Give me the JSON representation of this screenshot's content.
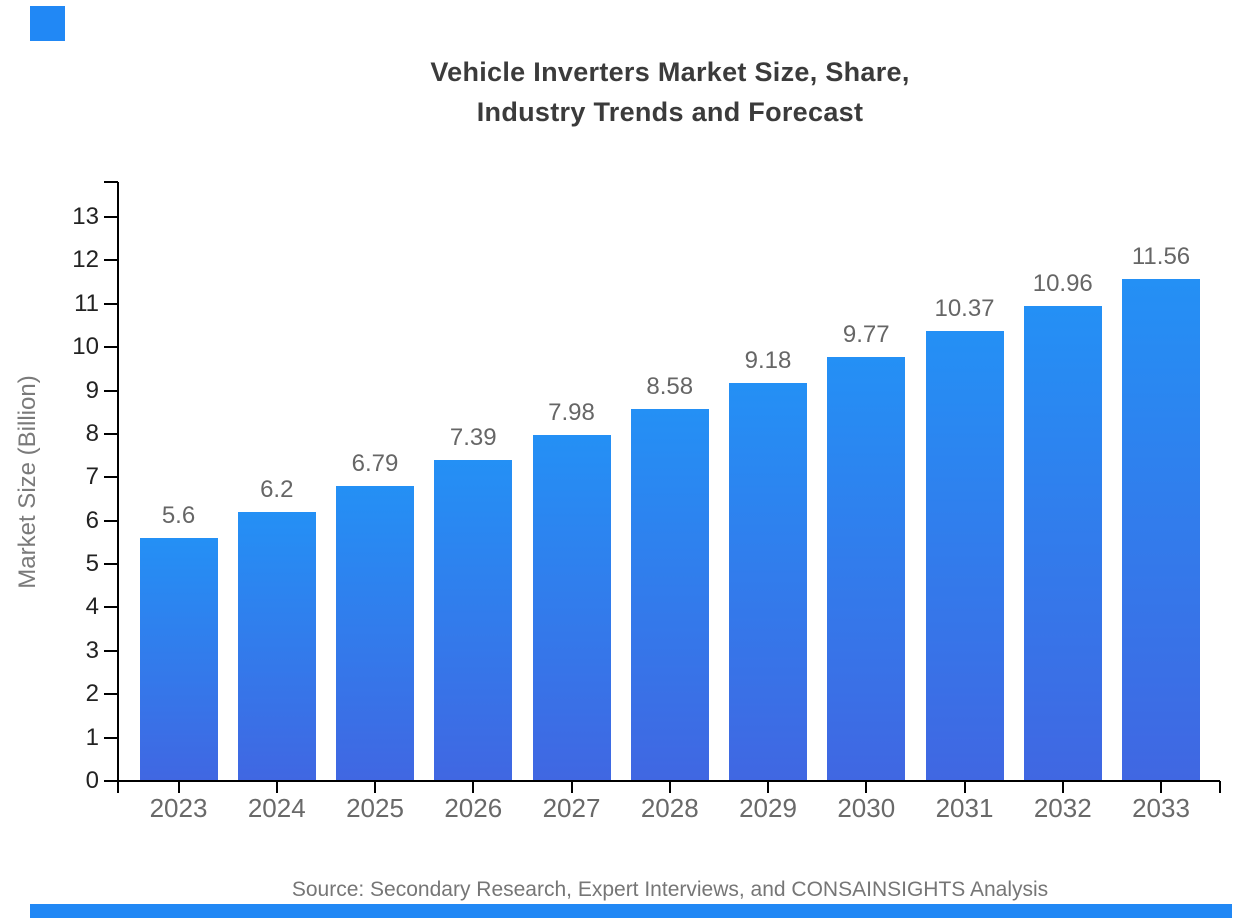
{
  "title": {
    "line1": "Vehicle Inverters Market Size, Share,",
    "line2": "Industry Trends and Forecast"
  },
  "source": "Source: Secondary Research, Expert Interviews, and CONSAINSIGHTS Analysis",
  "chart_data": {
    "type": "bar",
    "title": "Vehicle Inverters Market Size, Share, Industry Trends and Forecast",
    "categories": [
      "2023",
      "2024",
      "2025",
      "2026",
      "2027",
      "2028",
      "2029",
      "2030",
      "2031",
      "2032",
      "2033"
    ],
    "values": [
      5.6,
      6.2,
      6.79,
      7.39,
      7.98,
      8.58,
      9.18,
      9.77,
      10.37,
      10.96,
      11.56
    ],
    "value_labels": [
      "5.6",
      "6.2",
      "6.79",
      "7.39",
      "7.98",
      "8.58",
      "9.18",
      "9.77",
      "10.37",
      "10.96",
      "11.56"
    ],
    "xlabel": "",
    "ylabel": "Market Size (Billion)",
    "ylim": [
      0,
      13.8
    ],
    "yticks": [
      0,
      1,
      2,
      3,
      4,
      5,
      6,
      7,
      8,
      9,
      10,
      11,
      12,
      13
    ],
    "grid": false,
    "legend": "none"
  },
  "colors": {
    "bar_top": "#2490f5",
    "bar_bottom": "#4067e2",
    "brand_blue": "#2188f5",
    "axis": "#000000",
    "title_text": "#3b3b3b",
    "muted_text": "#696969"
  }
}
